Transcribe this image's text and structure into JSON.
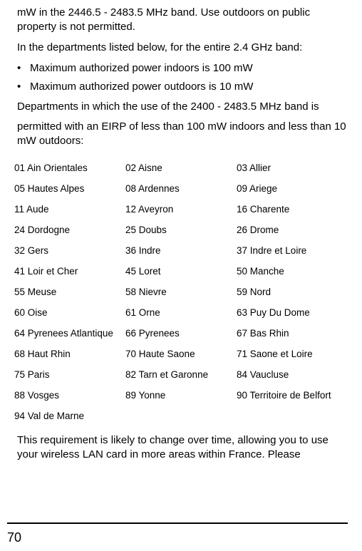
{
  "paragraphs": {
    "p1": "mW in the 2446.5 - 2483.5 MHz band. Use outdoors on public property is not permitted.",
    "p2": "In the departments listed below, for the entire 2.4 GHz band:",
    "p3": "Departments in which the use of the 2400 - 2483.5 MHz band is",
    "p4": "permitted with an EIRP of less than 100 mW indoors and less than 10 mW outdoors:",
    "p5": "This requirement is likely to change over time, allowing you to use your wireless LAN card in more areas within France. Please"
  },
  "bullets": [
    "Maximum authorized power indoors is 100 mW",
    "Maximum authorized power outdoors is 10 mW"
  ],
  "departments": [
    [
      "01 Ain Orientales",
      "02 Aisne",
      "03 Allier"
    ],
    [
      "05 Hautes Alpes",
      "08 Ardennes",
      "09 Ariege"
    ],
    [
      "11 Aude",
      "12 Aveyron",
      "16 Charente"
    ],
    [
      "24 Dordogne",
      "25 Doubs",
      "26 Drome"
    ],
    [
      "32 Gers",
      "36 Indre",
      "37 Indre et Loire"
    ],
    [
      "41 Loir et Cher",
      "45 Loret",
      "50 Manche"
    ],
    [
      "55 Meuse",
      "58 Nievre",
      "59 Nord"
    ],
    [
      "60 Oise",
      "61 Orne",
      "63 Puy Du Dome"
    ],
    [
      "64 Pyrenees Atlantique",
      "66 Pyrenees",
      "67 Bas Rhin"
    ],
    [
      "68 Haut Rhin",
      "70 Haute Saone",
      "71 Saone et Loire"
    ],
    [
      "75 Paris",
      "82 Tarn et Garonne",
      "84 Vaucluse"
    ],
    [
      "88 Vosges",
      "89 Yonne",
      "90 Territoire de Belfort"
    ],
    [
      "94 Val de Marne",
      "",
      ""
    ]
  ],
  "pageNumber": "70"
}
